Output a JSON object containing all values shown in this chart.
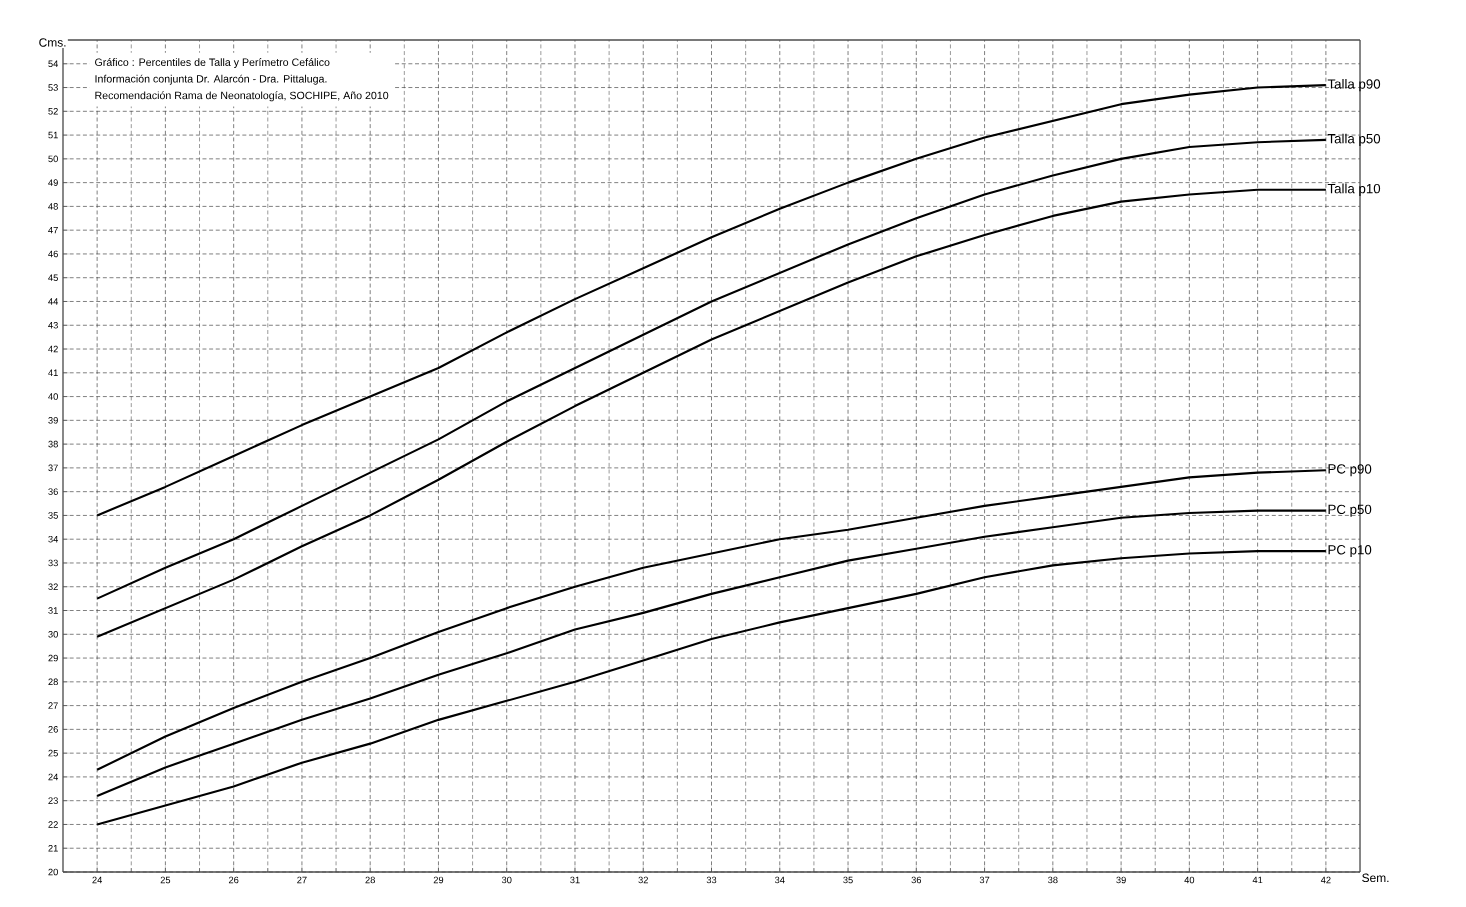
{
  "chart_data": {
    "type": "line",
    "annotations": [
      "Gráfico : Percentiles de Talla y Perímetro Cefálico",
      "Información conjunta Dr. Alarcón - Dra. Pittaluga.",
      "Recomendación Rama de Neonatología, SOCHIPE, Año 2010"
    ],
    "xlabel": "Sem.",
    "ylabel": "Cms.",
    "x": [
      24,
      25,
      26,
      27,
      28,
      29,
      30,
      31,
      32,
      33,
      34,
      35,
      36,
      37,
      38,
      39,
      40,
      41,
      42
    ],
    "series": [
      {
        "name": "Talla p90",
        "color": "#000000",
        "values": [
          35.0,
          36.2,
          37.5,
          38.8,
          40.0,
          41.2,
          42.7,
          44.1,
          45.4,
          46.7,
          47.9,
          49.0,
          50.0,
          50.9,
          51.6,
          52.3,
          52.7,
          53.0,
          53.1
        ]
      },
      {
        "name": "Talla p50",
        "color": "#000000",
        "values": [
          31.5,
          32.8,
          34.0,
          35.4,
          36.8,
          38.2,
          39.8,
          41.2,
          42.6,
          44.0,
          45.2,
          46.4,
          47.5,
          48.5,
          49.3,
          50.0,
          50.5,
          50.7,
          50.8
        ]
      },
      {
        "name": "Talla p10",
        "color": "#000000",
        "values": [
          29.9,
          31.1,
          32.3,
          33.7,
          35.0,
          36.5,
          38.1,
          39.6,
          41.0,
          42.4,
          43.6,
          44.8,
          45.9,
          46.8,
          47.6,
          48.2,
          48.5,
          48.7,
          48.7
        ]
      },
      {
        "name": "PC p90",
        "color": "#000000",
        "values": [
          24.3,
          25.7,
          26.9,
          28.0,
          29.0,
          30.1,
          31.1,
          32.0,
          32.8,
          33.4,
          34.0,
          34.4,
          34.9,
          35.4,
          35.8,
          36.2,
          36.6,
          36.8,
          36.9
        ]
      },
      {
        "name": "PC p50",
        "color": "#000000",
        "values": [
          23.2,
          24.4,
          25.4,
          26.4,
          27.3,
          28.3,
          29.2,
          30.2,
          30.9,
          31.7,
          32.4,
          33.1,
          33.6,
          34.1,
          34.5,
          34.9,
          35.1,
          35.2,
          35.2
        ]
      },
      {
        "name": "PC p10",
        "color": "#000000",
        "values": [
          22.0,
          22.8,
          23.6,
          24.6,
          25.4,
          26.4,
          27.2,
          28.0,
          28.9,
          29.8,
          30.5,
          31.1,
          31.7,
          32.4,
          32.9,
          33.2,
          33.4,
          33.5,
          33.5
        ]
      }
    ],
    "xlim": [
      23.5,
      42.5
    ],
    "ylim": [
      20,
      55
    ],
    "xticks": [
      24,
      25,
      26,
      27,
      28,
      29,
      30,
      31,
      32,
      33,
      34,
      35,
      36,
      37,
      38,
      39,
      40,
      41,
      42
    ],
    "yticks": [
      20,
      21,
      22,
      23,
      24,
      25,
      26,
      27,
      28,
      29,
      30,
      31,
      32,
      33,
      34,
      35,
      36,
      37,
      38,
      39,
      40,
      41,
      42,
      43,
      44,
      45,
      46,
      47,
      48,
      49,
      50,
      51,
      52,
      53,
      54
    ],
    "grid": true,
    "marker": "none",
    "line_style": "solid"
  }
}
